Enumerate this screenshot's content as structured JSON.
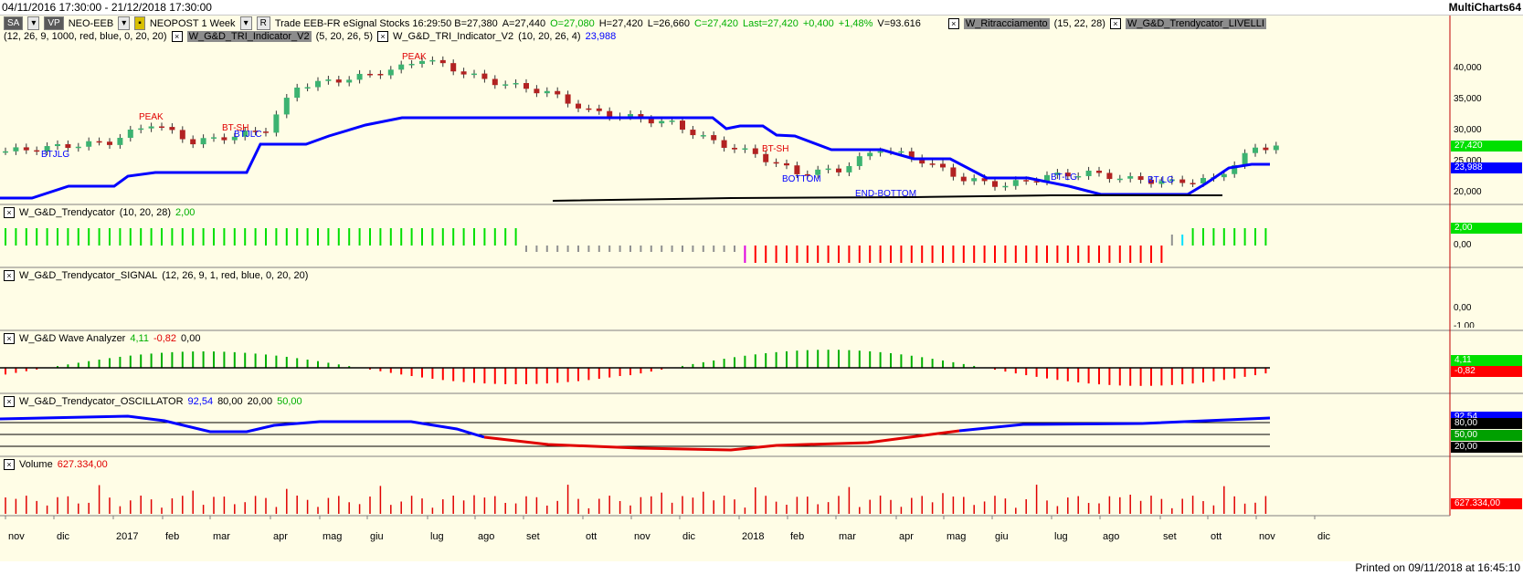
{
  "window": {
    "range": "04/11/2016 17:30:00 - 21/12/2018 17:30:00",
    "app": "MultiCharts64"
  },
  "toolbar": {
    "sa": "SA",
    "vp": "VP",
    "symbol": "NEO-EEB",
    "desc": "NEOPOST  1 Week",
    "r_btn": "R",
    "info": "Trade  EEB-FR  eSignal  Stocks  16:29:50  B=27,380",
    "ask": "A=27,440",
    "open": "O=27,080",
    "high": "H=27,420",
    "low": "L=26,660",
    "close": "C=27,420",
    "last": "Last=27,420",
    "chg": "+0,400",
    "pct": "+1,48%",
    "vol": "V=93.616",
    "study1": "W_Ritracciamento",
    "study1_params": "(15,  22,  28)",
    "study2": "W_G&D_Trendycator_LIVELLI"
  },
  "toolbar2": {
    "params": "(12,  26,  9,  1000,  red,  blue,  0,  20,  20)",
    "tri1": "W_G&D_TRI_Indicator_V2",
    "tri1_params": "(5,  20,  26,  5)",
    "tri2": "W_G&D_TRI_Indicator_V2",
    "tri2_params": "(10,  20,  26,  4)",
    "tri2_val": "23,988"
  },
  "price": {
    "yticks": [
      "40,000",
      "35,000",
      "30,000",
      "25,000",
      "20,000"
    ],
    "last_tag": "27,420",
    "tri_tag": "23,988",
    "annotations": [
      "PEAK",
      "PEAK",
      "BT-SH",
      "BTJLC",
      "BTJLG",
      "BT-SH",
      "BOTTOM",
      "END-BOTTOM",
      "BT-LG",
      "BT-LG"
    ],
    "colors": {
      "up": "#3cb371",
      "down": "#b22222",
      "tri": "#0000ff"
    }
  },
  "panes": {
    "trend": {
      "name": "W_G&D_Trendycator",
      "params": "(10,  20,  28)",
      "value": "2,00",
      "ticks": [
        "0,00"
      ],
      "tag": "2,00"
    },
    "signal": {
      "name": "W_G&D_Trendycator_SIGNAL",
      "params": "(12,  26,  9,  1,  red,  blue,  0,  20,  20)",
      "ticks": [
        "0,00",
        "-1,00"
      ]
    },
    "wave": {
      "name": "W_G&D Wave Analyzer",
      "v1": "4,11",
      "v2": "-0,82",
      "v3": "0,00",
      "tag1": "4,11",
      "tag2": "-0,82"
    },
    "osc": {
      "name": "W_G&D_Trendycator_OSCILLATOR",
      "v1": "92,54",
      "v2": "80,00",
      "v3": "20,00",
      "v4": "50,00",
      "tags": [
        "92,54",
        "80,00",
        "50,00",
        "20,00"
      ]
    },
    "volume": {
      "name": "Volume",
      "value": "627.334,00",
      "tag": "627.334,00"
    }
  },
  "xaxis": [
    "nov",
    "dic",
    "2017",
    "feb",
    "mar",
    "apr",
    "mag",
    "giu",
    "lug",
    "ago",
    "set",
    "ott",
    "nov",
    "dic",
    "2018",
    "feb",
    "mar",
    "apr",
    "mag",
    "giu",
    "lug",
    "ago",
    "set",
    "ott",
    "nov",
    "dic"
  ],
  "footer": "Printed on 09/11/2018 at 16:45:10"
}
